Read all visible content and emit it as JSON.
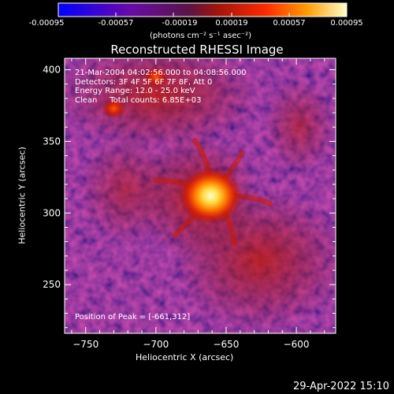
{
  "colorbar": {
    "ticks": [
      "-0.00095",
      "-0.00057",
      "-0.00019",
      "0.00019",
      "0.00057",
      "0.00095"
    ],
    "units": "(photons cm⁻² s⁻¹ asec⁻²)",
    "range": [
      -0.00095,
      0.00095
    ]
  },
  "chart_data": {
    "type": "heatmap",
    "title": "Reconstructed RHESSI Image",
    "xlabel": "Heliocentric X (arcsec)",
    "ylabel": "Heliocentric Y (arcsec)",
    "xlim": [
      -765,
      -572
    ],
    "ylim": [
      216,
      408
    ],
    "x_ticks": [
      -750,
      -700,
      -650,
      -600
    ],
    "y_ticks": [
      250,
      300,
      350,
      400
    ],
    "annotations": [
      "21-Mar-2004 04:02:56.000 to 04:08:56.000",
      "Detectors: 3F 4F 5F 6F 7F 8F, Att 0",
      "Energy Range: 12.0 - 25.0 keV",
      "Clean     Total counts: 6.85E+03"
    ],
    "peak_label": "Position of Peak = [-661,312]",
    "peak": [
      -661,
      312
    ],
    "secondary_sources": [
      [
        -730,
        373
      ],
      [
        -700,
        395
      ]
    ]
  },
  "footer": {
    "timestamp": "29-Apr-2022 15:10"
  }
}
